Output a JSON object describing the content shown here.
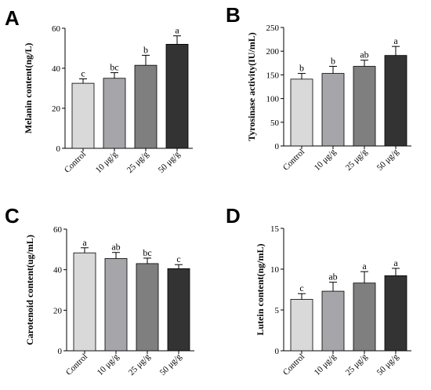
{
  "chart_data": [
    {
      "type": "bar",
      "panel": "A",
      "categories": [
        "Control",
        "10 μg/g",
        "25 μg/g",
        "50 μg/g"
      ],
      "values": [
        32.5,
        35,
        41.5,
        52
      ],
      "errors": [
        2.2,
        2.8,
        5,
        4.2
      ],
      "significance": [
        "c",
        "bc",
        "b",
        "a"
      ],
      "ylabel": "Melanin content(ng/L)",
      "ylim": [
        0,
        60
      ],
      "yticks": [
        0,
        20,
        40,
        60
      ]
    },
    {
      "type": "bar",
      "panel": "B",
      "categories": [
        "Control",
        "10 μg/g",
        "25 μg/g",
        "50 μg/g"
      ],
      "values": [
        141,
        153,
        168,
        191
      ],
      "errors": [
        12,
        15,
        13,
        19
      ],
      "significance": [
        "b",
        "b",
        "ab",
        "a"
      ],
      "ylabel": "Tyrosinase activity(IU/mL)",
      "ylim": [
        0,
        250
      ],
      "yticks": [
        0,
        50,
        100,
        150,
        200,
        250
      ]
    },
    {
      "type": "bar",
      "panel": "C",
      "categories": [
        "Control",
        "10 μg/g",
        "25 μg/g",
        "50 μg/g"
      ],
      "values": [
        48.3,
        45.5,
        43,
        40.5
      ],
      "errors": [
        2.5,
        3,
        2.7,
        2
      ],
      "significance": [
        "a",
        "ab",
        "bc",
        "c"
      ],
      "ylabel": "Carotenoid content(ug/mL)",
      "ylim": [
        0,
        60
      ],
      "yticks": [
        0,
        20,
        40,
        60
      ]
    },
    {
      "type": "bar",
      "panel": "D",
      "categories": [
        "Control",
        "10 μg/g",
        "25 μg/g",
        "50 μg/g"
      ],
      "values": [
        6.3,
        7.3,
        8.3,
        9.2
      ],
      "errors": [
        0.7,
        1.1,
        1.4,
        0.9
      ],
      "significance": [
        "c",
        "ab",
        "a",
        "a"
      ],
      "ylabel": "Lutein content(ng/mL)",
      "ylim": [
        0,
        15
      ],
      "yticks": [
        0,
        5,
        10,
        15
      ]
    }
  ],
  "colors": {
    "bars": [
      "#d9d9d9",
      "#a5a5aa",
      "#7f7f7f",
      "#333333"
    ],
    "axis": "#000000"
  }
}
